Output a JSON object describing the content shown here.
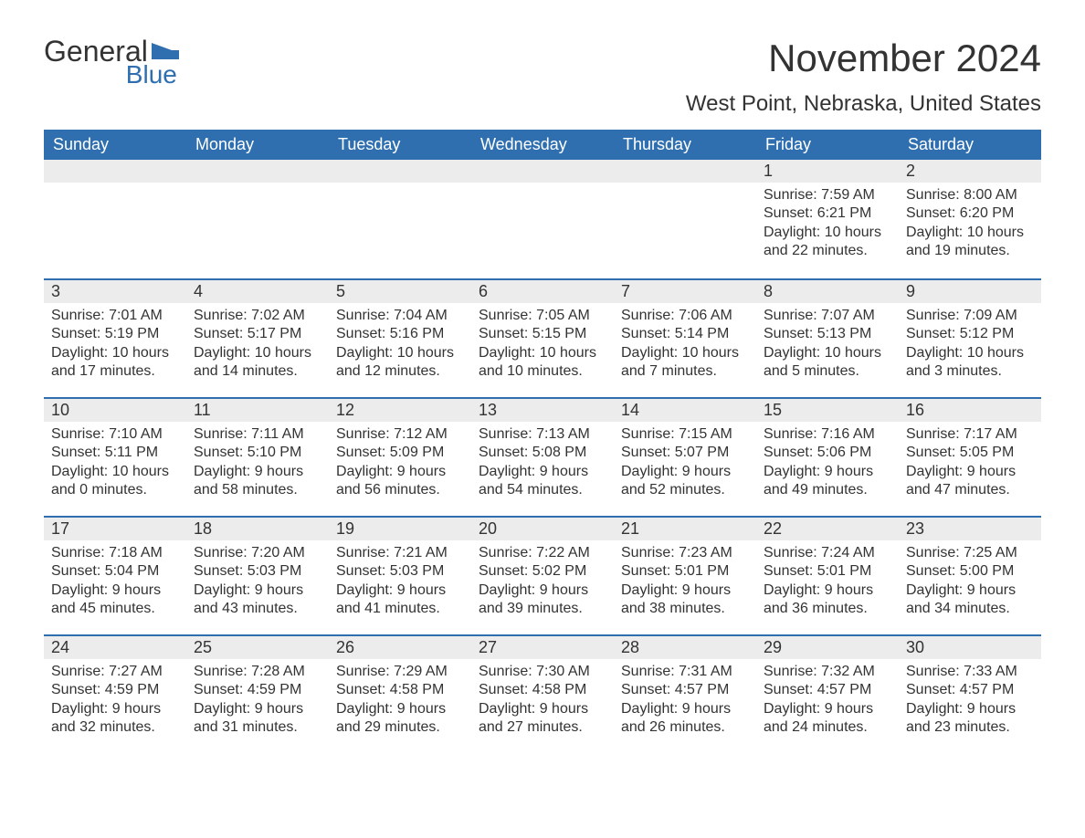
{
  "logo": {
    "word1": "General",
    "word2": "Blue",
    "brand_color": "#2f6fb0",
    "text_color": "#333333"
  },
  "title": "November 2024",
  "location": "West Point, Nebraska, United States",
  "header_bg": "#2f6fb0",
  "header_fg": "#ffffff",
  "daynum_bg": "#ececec",
  "border_color": "#2f6fb0",
  "text_color": "#333333",
  "background_color": "#ffffff",
  "title_fontsize": 42,
  "location_fontsize": 24,
  "dayhead_fontsize": 18,
  "body_fontsize": 16,
  "day_names": [
    "Sunday",
    "Monday",
    "Tuesday",
    "Wednesday",
    "Thursday",
    "Friday",
    "Saturday"
  ],
  "weeks": [
    [
      null,
      null,
      null,
      null,
      null,
      {
        "n": "1",
        "sunrise": "7:59 AM",
        "sunset": "6:21 PM",
        "daylight": "10 hours and 22 minutes."
      },
      {
        "n": "2",
        "sunrise": "8:00 AM",
        "sunset": "6:20 PM",
        "daylight": "10 hours and 19 minutes."
      }
    ],
    [
      {
        "n": "3",
        "sunrise": "7:01 AM",
        "sunset": "5:19 PM",
        "daylight": "10 hours and 17 minutes."
      },
      {
        "n": "4",
        "sunrise": "7:02 AM",
        "sunset": "5:17 PM",
        "daylight": "10 hours and 14 minutes."
      },
      {
        "n": "5",
        "sunrise": "7:04 AM",
        "sunset": "5:16 PM",
        "daylight": "10 hours and 12 minutes."
      },
      {
        "n": "6",
        "sunrise": "7:05 AM",
        "sunset": "5:15 PM",
        "daylight": "10 hours and 10 minutes."
      },
      {
        "n": "7",
        "sunrise": "7:06 AM",
        "sunset": "5:14 PM",
        "daylight": "10 hours and 7 minutes."
      },
      {
        "n": "8",
        "sunrise": "7:07 AM",
        "sunset": "5:13 PM",
        "daylight": "10 hours and 5 minutes."
      },
      {
        "n": "9",
        "sunrise": "7:09 AM",
        "sunset": "5:12 PM",
        "daylight": "10 hours and 3 minutes."
      }
    ],
    [
      {
        "n": "10",
        "sunrise": "7:10 AM",
        "sunset": "5:11 PM",
        "daylight": "10 hours and 0 minutes."
      },
      {
        "n": "11",
        "sunrise": "7:11 AM",
        "sunset": "5:10 PM",
        "daylight": "9 hours and 58 minutes."
      },
      {
        "n": "12",
        "sunrise": "7:12 AM",
        "sunset": "5:09 PM",
        "daylight": "9 hours and 56 minutes."
      },
      {
        "n": "13",
        "sunrise": "7:13 AM",
        "sunset": "5:08 PM",
        "daylight": "9 hours and 54 minutes."
      },
      {
        "n": "14",
        "sunrise": "7:15 AM",
        "sunset": "5:07 PM",
        "daylight": "9 hours and 52 minutes."
      },
      {
        "n": "15",
        "sunrise": "7:16 AM",
        "sunset": "5:06 PM",
        "daylight": "9 hours and 49 minutes."
      },
      {
        "n": "16",
        "sunrise": "7:17 AM",
        "sunset": "5:05 PM",
        "daylight": "9 hours and 47 minutes."
      }
    ],
    [
      {
        "n": "17",
        "sunrise": "7:18 AM",
        "sunset": "5:04 PM",
        "daylight": "9 hours and 45 minutes."
      },
      {
        "n": "18",
        "sunrise": "7:20 AM",
        "sunset": "5:03 PM",
        "daylight": "9 hours and 43 minutes."
      },
      {
        "n": "19",
        "sunrise": "7:21 AM",
        "sunset": "5:03 PM",
        "daylight": "9 hours and 41 minutes."
      },
      {
        "n": "20",
        "sunrise": "7:22 AM",
        "sunset": "5:02 PM",
        "daylight": "9 hours and 39 minutes."
      },
      {
        "n": "21",
        "sunrise": "7:23 AM",
        "sunset": "5:01 PM",
        "daylight": "9 hours and 38 minutes."
      },
      {
        "n": "22",
        "sunrise": "7:24 AM",
        "sunset": "5:01 PM",
        "daylight": "9 hours and 36 minutes."
      },
      {
        "n": "23",
        "sunrise": "7:25 AM",
        "sunset": "5:00 PM",
        "daylight": "9 hours and 34 minutes."
      }
    ],
    [
      {
        "n": "24",
        "sunrise": "7:27 AM",
        "sunset": "4:59 PM",
        "daylight": "9 hours and 32 minutes."
      },
      {
        "n": "25",
        "sunrise": "7:28 AM",
        "sunset": "4:59 PM",
        "daylight": "9 hours and 31 minutes."
      },
      {
        "n": "26",
        "sunrise": "7:29 AM",
        "sunset": "4:58 PM",
        "daylight": "9 hours and 29 minutes."
      },
      {
        "n": "27",
        "sunrise": "7:30 AM",
        "sunset": "4:58 PM",
        "daylight": "9 hours and 27 minutes."
      },
      {
        "n": "28",
        "sunrise": "7:31 AM",
        "sunset": "4:57 PM",
        "daylight": "9 hours and 26 minutes."
      },
      {
        "n": "29",
        "sunrise": "7:32 AM",
        "sunset": "4:57 PM",
        "daylight": "9 hours and 24 minutes."
      },
      {
        "n": "30",
        "sunrise": "7:33 AM",
        "sunset": "4:57 PM",
        "daylight": "9 hours and 23 minutes."
      }
    ]
  ],
  "labels": {
    "sunrise": "Sunrise: ",
    "sunset": "Sunset: ",
    "daylight": "Daylight: "
  }
}
